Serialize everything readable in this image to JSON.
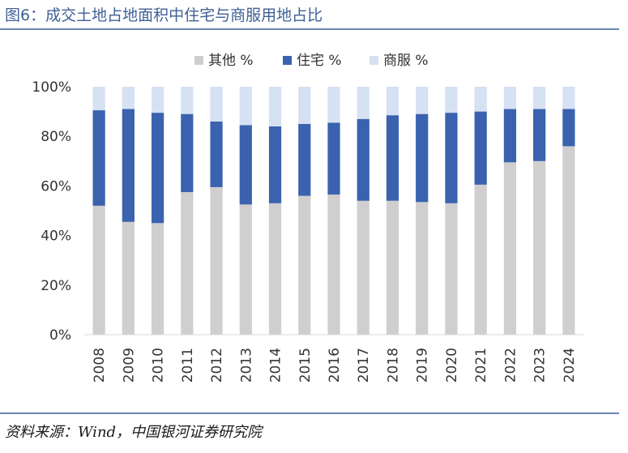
{
  "header": {
    "title": "图6：成交土地占地面积中住宅与商服用地占比"
  },
  "footer": {
    "source": "资料来源：Wind，中国银河证券研究院"
  },
  "chart_data": {
    "type": "bar",
    "stacked": true,
    "categories": [
      "2008",
      "2009",
      "2010",
      "2011",
      "2012",
      "2013",
      "2014",
      "2015",
      "2016",
      "2017",
      "2018",
      "2019",
      "2020",
      "2021",
      "2022",
      "2023",
      "2024"
    ],
    "series": [
      {
        "name": "其他 %",
        "color": "#d0cece",
        "values": [
          52,
          45.5,
          45,
          57.5,
          59.5,
          52.5,
          53,
          56,
          56.5,
          54,
          54,
          53.5,
          53,
          60.5,
          69.5,
          70,
          76
        ]
      },
      {
        "name": "住宅 %",
        "color": "#3a62ae",
        "values": [
          38.5,
          45.5,
          44.5,
          31.5,
          26.5,
          32,
          31,
          29,
          29,
          33,
          34.5,
          35.5,
          36.5,
          29.5,
          21.5,
          21,
          15
        ]
      },
      {
        "name": "商服 %",
        "color": "#d6e1f3",
        "values": [
          9.5,
          9,
          10.5,
          11,
          14,
          15.5,
          16,
          15,
          14.5,
          13,
          11.5,
          11,
          10.5,
          10,
          9,
          9,
          9
        ]
      }
    ],
    "yticks": [
      "0%",
      "20%",
      "40%",
      "60%",
      "80%",
      "100%"
    ],
    "ylim": [
      0,
      100
    ],
    "legend_position": "top-center",
    "grid": false
  }
}
